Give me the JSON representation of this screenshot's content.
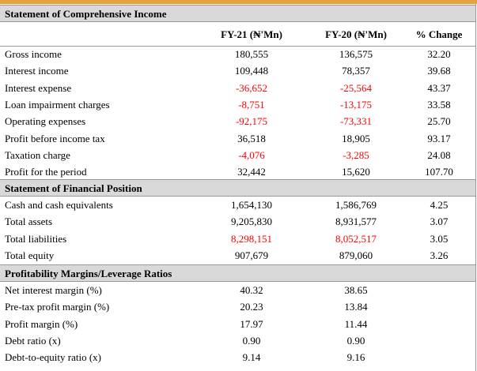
{
  "table": {
    "columns": [
      "FY-21 (₦'Mn)",
      "FY-20 (₦'Mn)",
      "% Change"
    ],
    "highlight_color": "#ff0000",
    "sections": [
      {
        "title": "Statement of Comprehensive Income",
        "rows": [
          {
            "label": "Gross income",
            "values": [
              "180,555",
              "136,575",
              "32.20"
            ]
          },
          {
            "label": "Interest income",
            "values": [
              "109,448",
              "78,357",
              "39.68"
            ]
          },
          {
            "label": "Interest expense",
            "values": [
              "-36,652",
              "-25,564",
              "43.37"
            ],
            "highlight": true
          },
          {
            "label": "Loan impairment charges",
            "values": [
              "-8,751",
              "-13,175",
              "33.58"
            ],
            "highlight": true
          },
          {
            "label": "Operating expenses",
            "values": [
              "-92,175",
              "-73,331",
              "25.70"
            ],
            "highlight": true
          },
          {
            "label": "Profit before income tax",
            "values": [
              "36,518",
              "18,905",
              "93.17"
            ]
          },
          {
            "label": "Taxation charge",
            "values": [
              "-4,076",
              "-3,285",
              "24.08"
            ],
            "highlight": true
          },
          {
            "label": "Profit for the period",
            "values": [
              "32,442",
              "15,620",
              "107.70"
            ]
          }
        ]
      },
      {
        "title": "Statement of Financial Position",
        "rows": [
          {
            "label": "Cash and cash equivalents",
            "values": [
              "1,654,130",
              "1,586,769",
              "4.25"
            ]
          },
          {
            "label": "Total assets",
            "values": [
              "9,205,830",
              "8,931,577",
              "3.07"
            ]
          },
          {
            "label": "Total liabilities",
            "values": [
              "8,298,151",
              "8,052,517",
              "3.05"
            ],
            "highlight": true
          },
          {
            "label": "Total equity",
            "values": [
              "907,679",
              "879,060",
              "3.26"
            ]
          }
        ]
      },
      {
        "title": "Profitability Margins/Leverage Ratios",
        "rows": [
          {
            "label": "Net interest margin (%)",
            "values": [
              "40.32",
              "38.65"
            ]
          },
          {
            "label": "Pre-tax profit margin (%)",
            "values": [
              "20.23",
              "13.84"
            ]
          },
          {
            "label": "Profit margin (%)",
            "values": [
              "17.97",
              "11.44"
            ]
          },
          {
            "label": "Debt ratio (x)",
            "values": [
              "0.90",
              "0.90"
            ]
          },
          {
            "label": "Debt-to-equity ratio (x)",
            "values": [
              "9.14",
              "9.16"
            ]
          }
        ]
      }
    ]
  }
}
